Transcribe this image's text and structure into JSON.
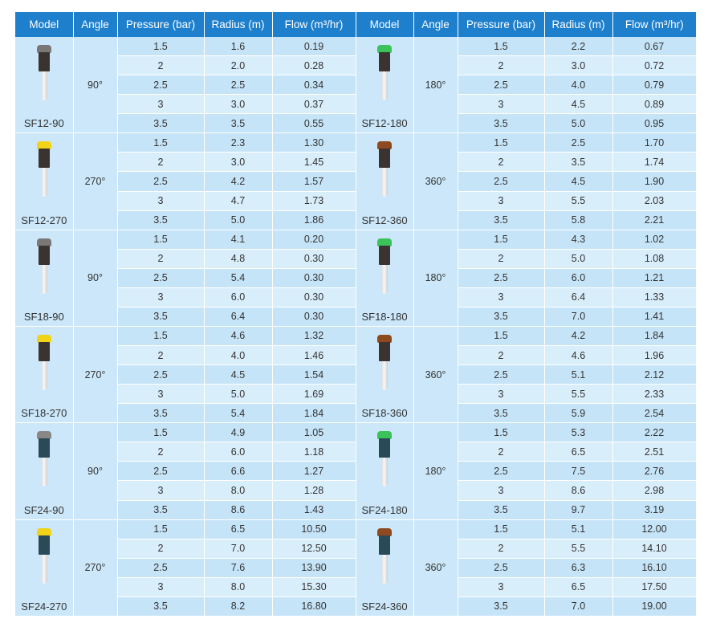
{
  "headers": [
    "Model",
    "Angle",
    "Pressure (bar)",
    "Radius (m)",
    "Flow (m³/hr)"
  ],
  "pressures": [
    "1.5",
    "2",
    "2.5",
    "3",
    "3.5"
  ],
  "rows": [
    {
      "left": {
        "model": "SF12-90",
        "angle": "90°",
        "cap_color": "#7a7876",
        "radius": [
          "1.6",
          "2.0",
          "2.5",
          "3.0",
          "3.5"
        ],
        "flow": [
          "0.19",
          "0.28",
          "0.34",
          "0.37",
          "0.55"
        ]
      },
      "right": {
        "model": "SF12-180",
        "angle": "180°",
        "cap_color": "#3cc25a",
        "radius": [
          "2.2",
          "3.0",
          "4.0",
          "4.5",
          "5.0"
        ],
        "flow": [
          "0.67",
          "0.72",
          "0.79",
          "0.89",
          "0.95"
        ]
      }
    },
    {
      "left": {
        "model": "SF12-270",
        "angle": "270°",
        "cap_color": "#f1d418",
        "radius": [
          "2.3",
          "3.0",
          "4.2",
          "4.7",
          "5.0"
        ],
        "flow": [
          "1.30",
          "1.45",
          "1.57",
          "1.73",
          "1.86"
        ]
      },
      "right": {
        "model": "SF12-360",
        "angle": "360°",
        "cap_color": "#8e4a1e",
        "radius": [
          "2.5",
          "3.5",
          "4.5",
          "5.5",
          "5.8"
        ],
        "flow": [
          "1.70",
          "1.74",
          "1.90",
          "2.03",
          "2.21"
        ]
      }
    },
    {
      "left": {
        "model": "SF18-90",
        "angle": "90°",
        "cap_color": "#7a7876",
        "radius": [
          "4.1",
          "4.8",
          "5.4",
          "6.0",
          "6.4"
        ],
        "flow": [
          "0.20",
          "0.30",
          "0.30",
          "0.30",
          "0.30"
        ]
      },
      "right": {
        "model": "SF18-180",
        "angle": "180°",
        "cap_color": "#3cc25a",
        "radius": [
          "4.3",
          "5.0",
          "6.0",
          "6.4",
          "7.0"
        ],
        "flow": [
          "1.02",
          "1.08",
          "1.21",
          "1.33",
          "1.41"
        ]
      }
    },
    {
      "left": {
        "model": "SF18-270",
        "angle": "270°",
        "cap_color": "#f1d418",
        "radius": [
          "4.6",
          "4.0",
          "4.5",
          "5.0",
          "5.4"
        ],
        "flow": [
          "1.32",
          "1.46",
          "1.54",
          "1.69",
          "1.84"
        ]
      },
      "right": {
        "model": "SF18-360",
        "angle": "360°",
        "cap_color": "#8e4a1e",
        "radius": [
          "4.2",
          "4.6",
          "5.1",
          "5.5",
          "5.9"
        ],
        "flow": [
          "1.84",
          "1.96",
          "2.12",
          "2.33",
          "2.54"
        ]
      }
    },
    {
      "left": {
        "model": "SF24-90",
        "angle": "90°",
        "cap_color": "#8a8886",
        "radius": [
          "4.9",
          "6.0",
          "6.6",
          "8.0",
          "8.6"
        ],
        "flow": [
          "1.05",
          "1.18",
          "1.27",
          "1.28",
          "1.43"
        ]
      },
      "right": {
        "model": "SF24-180",
        "angle": "180°",
        "cap_color": "#3cc25a",
        "radius": [
          "5.3",
          "6.5",
          "7.5",
          "8.6",
          "9.7"
        ],
        "flow": [
          "2.22",
          "2.51",
          "2.76",
          "2.98",
          "3.19"
        ]
      }
    },
    {
      "left": {
        "model": "SF24-270",
        "angle": "270°",
        "cap_color": "#f1d418",
        "radius": [
          "6.5",
          "7.0",
          "7.6",
          "8.0",
          "8.2"
        ],
        "flow": [
          "10.50",
          "12.50",
          "13.90",
          "15.30",
          "16.80"
        ]
      },
      "right": {
        "model": "SF24-360",
        "angle": "360°",
        "cap_color": "#8e4a1e",
        "radius": [
          "5.1",
          "5.5",
          "6.3",
          "6.5",
          "7.0"
        ],
        "flow": [
          "12.00",
          "14.10",
          "16.10",
          "17.50",
          "19.00"
        ]
      }
    }
  ]
}
